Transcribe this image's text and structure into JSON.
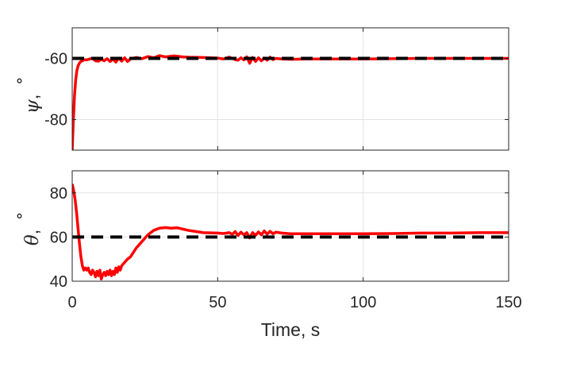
{
  "chart_data": [
    {
      "type": "line",
      "ylabel": "ψ, °",
      "ylabel_symbol": "ψ",
      "ylabel_unit": "°",
      "xlim": [
        0,
        150
      ],
      "ylim": [
        -90,
        -50
      ],
      "yticks": [
        -80,
        -60
      ],
      "ytick_labels": [
        "-80",
        "-60"
      ],
      "xticks": [
        0,
        50,
        100,
        150
      ],
      "grid": true,
      "colors": {
        "response": "#ff0000",
        "reference": "#000000"
      },
      "series": [
        {
          "style": "solid",
          "x": [
            0,
            0.4,
            0.8,
            1.2,
            1.6,
            2,
            2.5,
            3,
            3.5,
            4,
            5,
            6,
            7,
            8,
            9,
            10,
            11,
            12,
            13,
            14,
            15,
            16,
            17,
            18,
            19,
            20,
            22,
            24,
            26,
            28,
            30,
            32,
            35,
            38,
            40,
            45,
            50,
            52,
            54,
            56,
            57,
            58,
            59,
            60,
            61,
            62,
            63,
            64,
            65,
            66,
            67,
            68,
            69,
            70,
            72,
            75,
            80,
            90,
            100,
            110,
            120,
            130,
            140,
            150
          ],
          "y": [
            -90,
            -80,
            -72,
            -67,
            -64,
            -62.5,
            -61.5,
            -61,
            -60.8,
            -60.5,
            -60.5,
            -60.2,
            -60,
            -60.8,
            -60.9,
            -60.3,
            -60.8,
            -60.1,
            -61,
            -60.2,
            -61.2,
            -59.9,
            -60.9,
            -59.8,
            -61,
            -60.2,
            -59.7,
            -60.1,
            -59.4,
            -59.8,
            -59.1,
            -59.5,
            -59.2,
            -59.5,
            -59.6,
            -59.7,
            -59.9,
            -60.2,
            -59.6,
            -60.4,
            -60.6,
            -59.8,
            -60.5,
            -59.5,
            -61.6,
            -59.7,
            -61,
            -59.8,
            -60.8,
            -59.9,
            -60.6,
            -59.6,
            -60.4,
            -60,
            -60.2,
            -60.3,
            -60.2,
            -60.2,
            -60.2,
            -60.1,
            -60,
            -60,
            -60,
            -60
          ]
        },
        {
          "style": "dashed",
          "x": [
            0,
            150
          ],
          "y": [
            -60,
            -60
          ]
        }
      ]
    },
    {
      "type": "line",
      "ylabel": "θ, °",
      "ylabel_symbol": "θ",
      "ylabel_unit": "°",
      "xlabel": "Time, s",
      "xlim": [
        0,
        150
      ],
      "ylim": [
        40,
        90
      ],
      "yticks": [
        40,
        60,
        80
      ],
      "ytick_labels": [
        "40",
        "60",
        "80"
      ],
      "xticks": [
        0,
        50,
        100,
        150
      ],
      "xtick_labels": [
        "0",
        "50",
        "100",
        "150"
      ],
      "grid": true,
      "colors": {
        "response": "#ff0000",
        "reference": "#000000"
      },
      "series": [
        {
          "style": "solid",
          "x": [
            0,
            0.5,
            1,
            1.5,
            2,
            2.5,
            3,
            3.5,
            4,
            4.5,
            5,
            5.5,
            6,
            6.5,
            7,
            7.5,
            8,
            8.5,
            9,
            9.5,
            10,
            10.5,
            11,
            11.5,
            12,
            12.5,
            13,
            13.5,
            14,
            14.5,
            15,
            15.5,
            16,
            16.5,
            17,
            18,
            19,
            20,
            22,
            24,
            26,
            28,
            30,
            32,
            34,
            36,
            38,
            40,
            45,
            50,
            52,
            54,
            55,
            56,
            57,
            58,
            59,
            60,
            61,
            62,
            63,
            64,
            65,
            66,
            67,
            68,
            69,
            70,
            72,
            75,
            80,
            90,
            100,
            110,
            120,
            130,
            140,
            150
          ],
          "y": [
            84,
            81,
            77,
            71,
            64,
            57,
            51,
            47,
            45,
            46,
            45,
            46,
            44,
            43,
            45,
            44,
            42,
            44.5,
            42.5,
            45,
            41,
            43,
            44,
            42.5,
            44.5,
            43,
            45,
            42.5,
            44.5,
            43,
            46,
            44,
            46.5,
            45,
            47,
            48.5,
            50,
            51,
            55,
            58,
            61,
            63,
            64,
            64.3,
            64,
            64.2,
            63.6,
            63,
            62,
            61.8,
            61.6,
            62,
            61.2,
            62.5,
            60.7,
            62.2,
            61,
            62,
            59.6,
            62,
            60.8,
            62.3,
            61,
            62.8,
            61.3,
            62.6,
            61.5,
            62.2,
            61.8,
            61.5,
            61.5,
            61.5,
            61.5,
            61.6,
            61.8,
            61.8,
            62,
            62
          ]
        },
        {
          "style": "dashed",
          "x": [
            0,
            150
          ],
          "y": [
            60,
            60
          ]
        }
      ]
    }
  ]
}
